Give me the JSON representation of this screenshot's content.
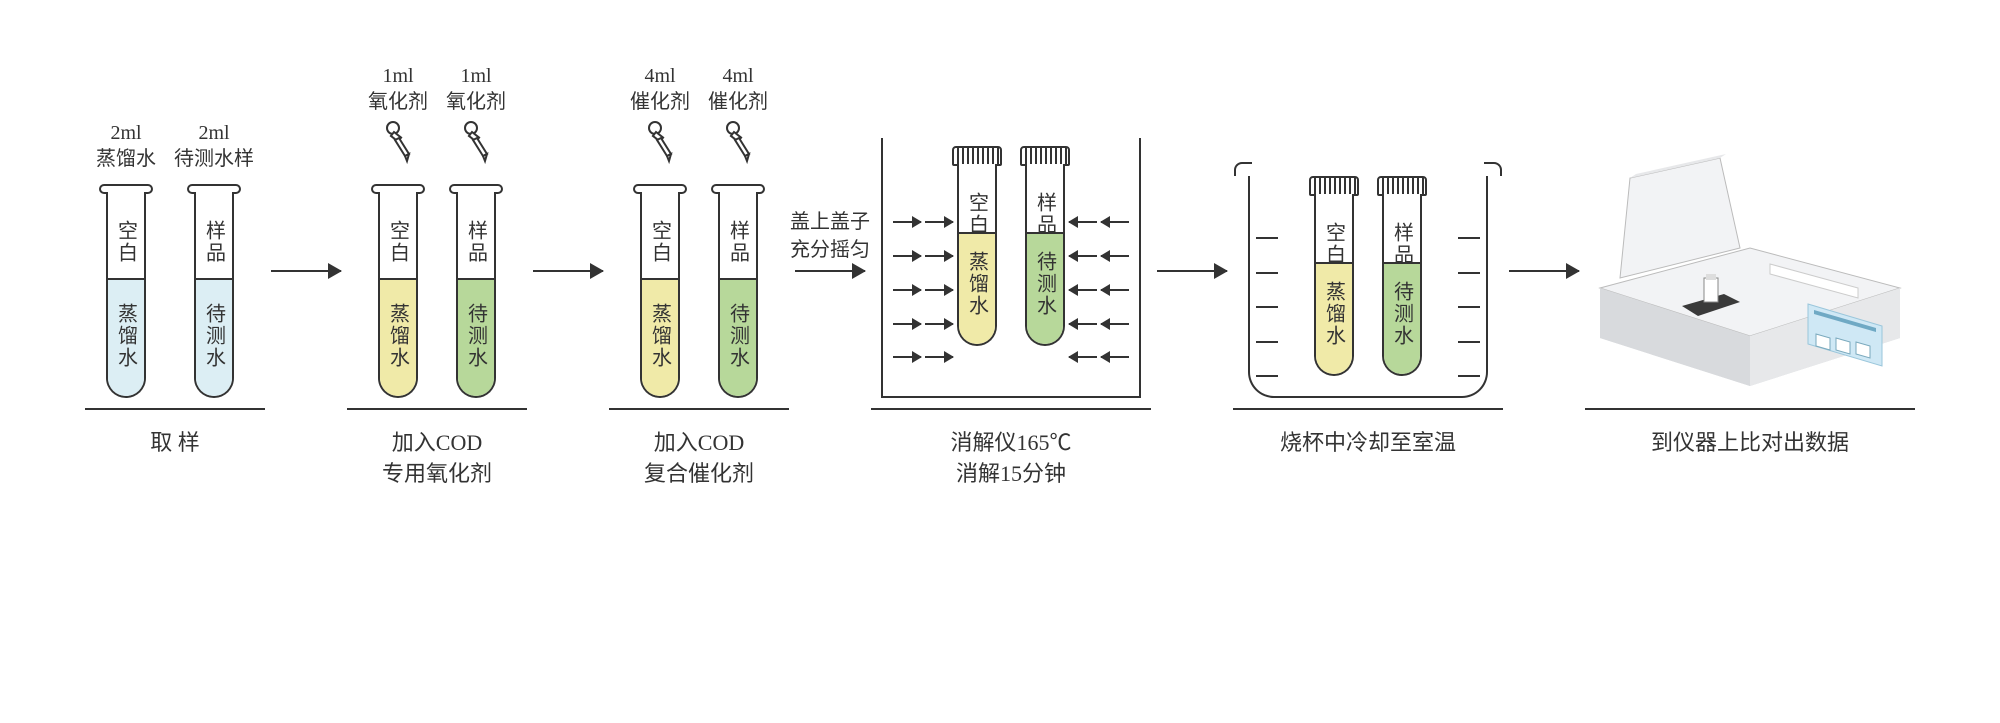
{
  "colors": {
    "stroke": "#333333",
    "liquid_blue": "#dceef4",
    "liquid_yellow": "#f0eaa8",
    "liquid_green": "#b7d89a",
    "instrument_body": "#f2f3f5",
    "instrument_shadow": "#d8dadd",
    "screen": "#cfe8f5"
  },
  "steps": [
    {
      "id": "sampling",
      "caption_line1": "取 样",
      "caption_line2": "",
      "tubes": [
        {
          "top_line1": "2ml",
          "top_line2": "蒸馏水",
          "dropper": false,
          "cap": false,
          "upper": "空白",
          "lower": "蒸馏水",
          "liquid_color": "#dceef4",
          "liquid_height": 118
        },
        {
          "top_line1": "2ml",
          "top_line2": "待测水样",
          "dropper": false,
          "cap": false,
          "upper": "样品",
          "lower": "待测水",
          "liquid_color": "#dceef4",
          "liquid_height": 118
        }
      ]
    },
    {
      "id": "oxidizer",
      "caption_line1": "加入COD",
      "caption_line2": "专用氧化剂",
      "tubes": [
        {
          "top_line1": "1ml",
          "top_line2": "氧化剂",
          "dropper": true,
          "cap": false,
          "upper": "空白",
          "lower": "蒸馏水",
          "liquid_color": "#f0eaa8",
          "liquid_height": 118
        },
        {
          "top_line1": "1ml",
          "top_line2": "氧化剂",
          "dropper": true,
          "cap": false,
          "upper": "样品",
          "lower": "待测水",
          "liquid_color": "#b7d89a",
          "liquid_height": 118
        }
      ]
    },
    {
      "id": "catalyst",
      "caption_line1": "加入COD",
      "caption_line2": "复合催化剂",
      "tubes": [
        {
          "top_line1": "4ml",
          "top_line2": "催化剂",
          "dropper": true,
          "cap": false,
          "upper": "空白",
          "lower": "蒸馏水",
          "liquid_color": "#f0eaa8",
          "liquid_height": 118
        },
        {
          "top_line1": "4ml",
          "top_line2": "催化剂",
          "dropper": true,
          "cap": false,
          "upper": "样品",
          "lower": "待测水",
          "liquid_color": "#b7d89a",
          "liquid_height": 118
        }
      ]
    },
    {
      "id": "digest",
      "caption_line1": "消解仪165℃",
      "caption_line2": "消解15分钟",
      "container": "digester",
      "tubes": [
        {
          "cap": true,
          "upper": "空白",
          "lower": "蒸馏水",
          "liquid_color": "#f0eaa8",
          "liquid_height": 112
        },
        {
          "cap": true,
          "upper": "样品",
          "lower": "待测水",
          "liquid_color": "#b7d89a",
          "liquid_height": 112
        }
      ]
    },
    {
      "id": "cool",
      "caption_line1": "烧杯中冷却至室温",
      "caption_line2": "",
      "container": "beaker",
      "tubes": [
        {
          "cap": true,
          "upper": "空白",
          "lower": "蒸馏水",
          "liquid_color": "#f0eaa8",
          "liquid_height": 112
        },
        {
          "cap": true,
          "upper": "样品",
          "lower": "待测水",
          "liquid_color": "#b7d89a",
          "liquid_height": 112
        }
      ]
    },
    {
      "id": "measure",
      "caption_line1": "到仪器上比对出数据",
      "caption_line2": ""
    }
  ],
  "arrows": [
    {
      "annot1": "",
      "annot2": ""
    },
    {
      "annot1": "",
      "annot2": ""
    },
    {
      "annot1": "盖上盖子",
      "annot2": "充分摇匀"
    },
    {
      "annot1": "",
      "annot2": ""
    },
    {
      "annot1": "",
      "annot2": ""
    }
  ],
  "heat_rows": [
    0.32,
    0.45,
    0.58,
    0.71,
    0.84
  ],
  "beaker_grads": [
    0.3,
    0.45,
    0.6,
    0.75,
    0.9
  ]
}
